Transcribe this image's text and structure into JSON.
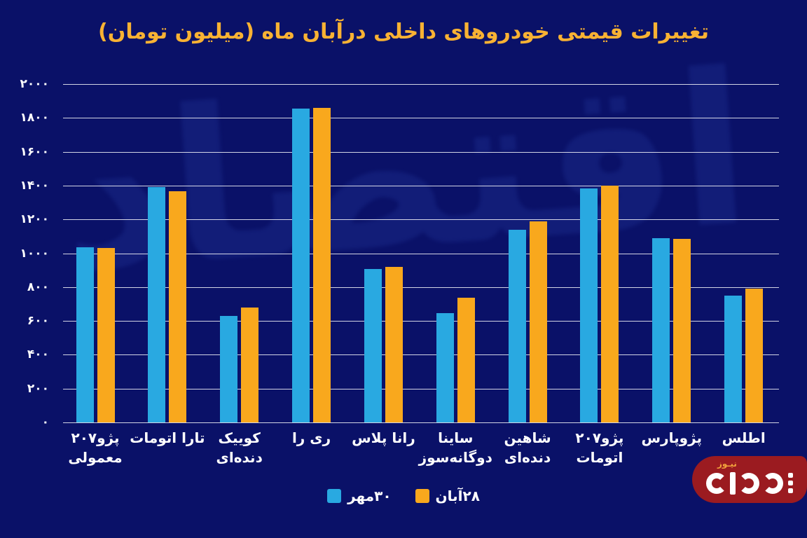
{
  "title": "تغییرات قیمتی خودروهای داخلی درآبان ماه (میلیون تومان)",
  "watermark": "اقتصاد",
  "logo": {
    "news_label": "نیـوز"
  },
  "colors": {
    "background": "#0A1168",
    "title": "#F9B233",
    "bar_blue": "#29A9E1",
    "bar_orange": "#F9A81D",
    "grid": "#FFFFFF",
    "text": "#FFFFFF",
    "logo_red": "#9B1B20"
  },
  "chart_data": {
    "type": "bar",
    "title": "تغییرات قیمتی خودروهای داخلی درآبان ماه (میلیون تومان)",
    "xlabel": "",
    "ylabel": "میلیون تومان",
    "ylim": [
      0,
      2000
    ],
    "grid": true,
    "legend_position": "bottom",
    "categories": [
      [
        "پژو۲۰۷",
        "معمولی"
      ],
      [
        "تارا اتومات"
      ],
      [
        "کوییک",
        "دنده‌ای"
      ],
      [
        "ری را"
      ],
      [
        "رانا پلاس"
      ],
      [
        "ساینا",
        "دوگانه‌سوز"
      ],
      [
        "شاهین",
        "دنده‌ای"
      ],
      [
        "پژو۲۰۷",
        "اتومات"
      ],
      [
        "پژوپارس"
      ],
      [
        "اطلس"
      ]
    ],
    "series": [
      {
        "name": "۳۰مهر",
        "color": "#29A9E1",
        "values": [
          1035,
          1390,
          630,
          1855,
          905,
          645,
          1140,
          1385,
          1090,
          750
        ]
      },
      {
        "name": "۲۸آبان",
        "color": "#F9A81D",
        "values": [
          1030,
          1365,
          680,
          1860,
          920,
          735,
          1190,
          1400,
          1085,
          790
        ]
      }
    ],
    "yticks": {
      "values": [
        2000,
        1800,
        1600,
        1400,
        1200,
        1000,
        800,
        600,
        400,
        200,
        0
      ],
      "labels": [
        "۲۰۰۰",
        "۱۸۰۰",
        "۱۶۰۰",
        "۱۴۰۰",
        "۱۲۰۰",
        "۱۰۰۰",
        "۸۰۰",
        "۶۰۰",
        "۴۰۰",
        "۲۰۰",
        "۰"
      ]
    }
  }
}
